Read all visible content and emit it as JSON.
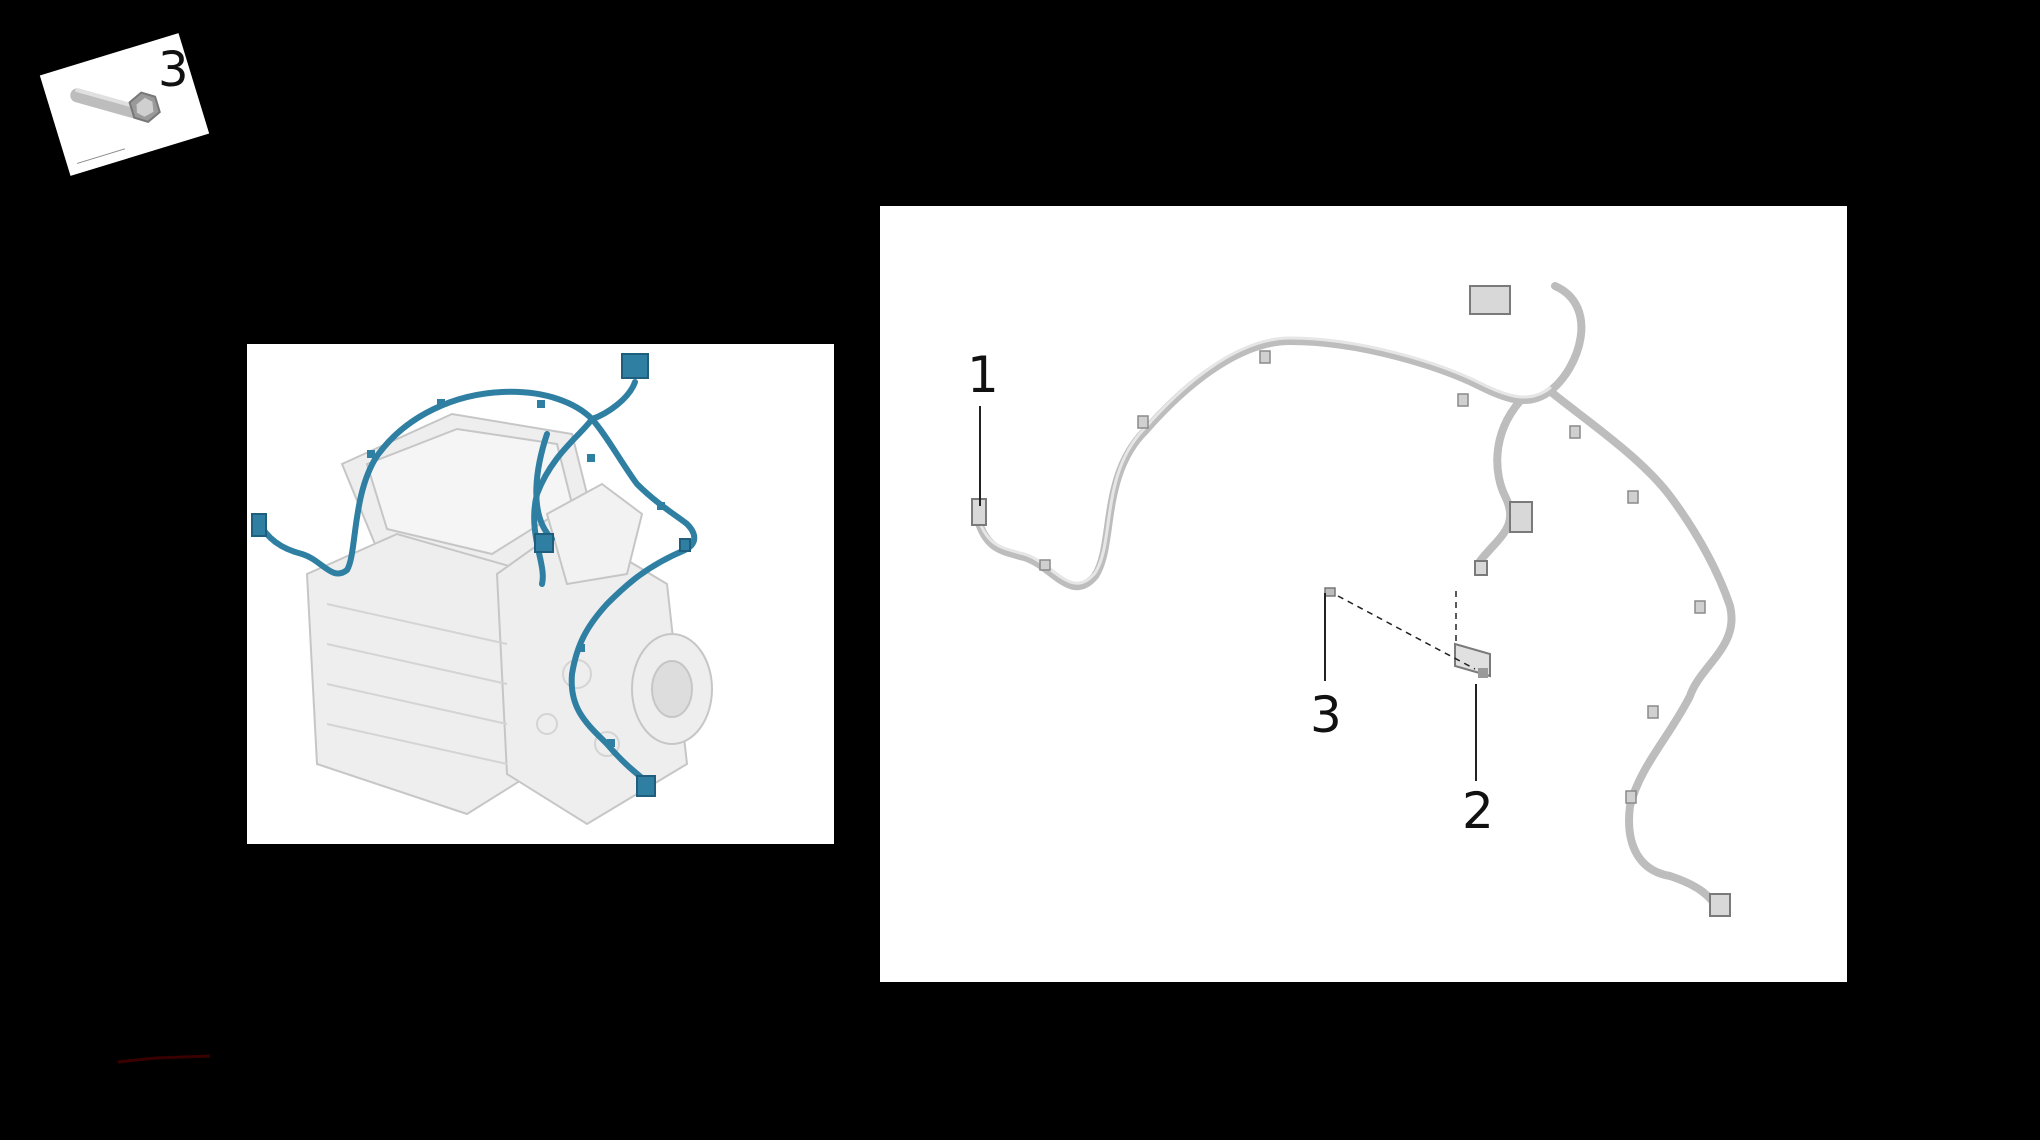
{
  "thumbnail": {
    "label": "3"
  },
  "callouts": {
    "c1": "1",
    "c2": "2",
    "c3": "3"
  },
  "colors": {
    "harness_blue": "#2f7fa3",
    "harness_gray": "#c9c9c9",
    "background": "#000000",
    "panel": "#ffffff"
  },
  "icons": {
    "thumbnail": "bolt-icon",
    "overview": "motor-assembly-illustration",
    "exploded": "wiring-harness-illustration"
  }
}
